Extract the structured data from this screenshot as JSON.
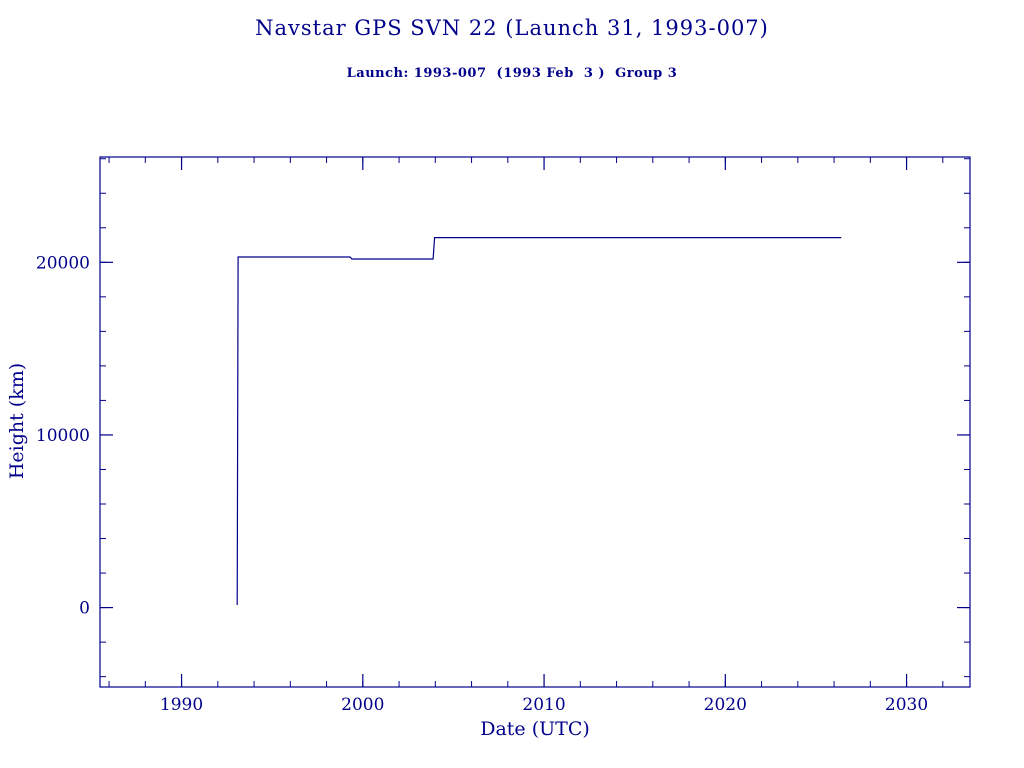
{
  "page": {
    "background": "#ffffff",
    "accent": "#00008B"
  },
  "header": {
    "title": "Navstar GPS SVN 22 (Launch 31, 1993-007)",
    "subtitle": "Launch: 1993-007  (1993 Feb  3 )  Group 3"
  },
  "chart_data": {
    "type": "line",
    "title": "Navstar GPS SVN 22 (Launch 31, 1993-007)",
    "subtitle": "Launch: 1993-007  (1993 Feb  3 )  Group 3",
    "xlabel": "Date (UTC)",
    "ylabel": "Height (km)",
    "xlim": [
      1985.5,
      2033.5
    ],
    "ylim": [
      -4600,
      26100
    ],
    "xticks": [
      1990,
      2000,
      2010,
      2020,
      2030
    ],
    "yticks": [
      0,
      10000,
      20000
    ],
    "x_minor_step": 2,
    "y_minor_step": 2000,
    "grid": false,
    "legend": "none",
    "line_color": "#00008B",
    "frame_color": "#00008B",
    "series": [
      {
        "name": "height-km",
        "points": [
          [
            1993.07,
            150
          ],
          [
            1993.12,
            20310
          ],
          [
            1999.3,
            20310
          ],
          [
            1999.4,
            20190
          ],
          [
            2003.88,
            20190
          ],
          [
            2003.96,
            21430
          ],
          [
            2026.4,
            21430
          ]
        ]
      }
    ]
  }
}
